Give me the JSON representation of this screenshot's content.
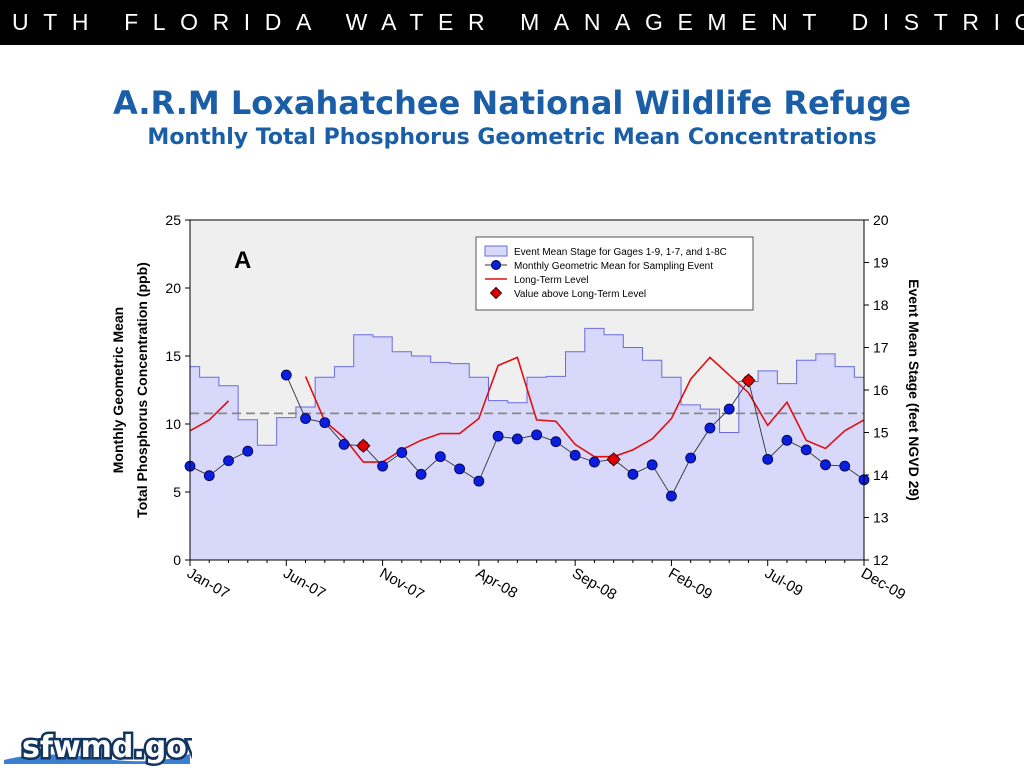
{
  "header": {
    "banner": "SOUTH FLORIDA WATER MANAGEMENT DISTRICT"
  },
  "title": "A.R.M Loxahatchee National Wildlife Refuge",
  "subtitle": "Monthly Total Phosphorus Geometric Mean Concentrations",
  "logo": {
    "text": "sfwmd.gov"
  },
  "colors": {
    "title": "#1a5ea8",
    "stage_fill": "#d8d8fb",
    "stage_line": "#6a6ae6",
    "mean_point": "#0a1ee0",
    "long_term": "#e01010",
    "above": "#e00000"
  },
  "chart_data": {
    "type": "line",
    "panel_label": "A",
    "ylabel_left_line1": "Monthly Geometric Mean",
    "ylabel_left_line2": "Total Phosphorus Concentration (ppb)",
    "ylabel_right": "Event Mean Stage (feet NGVD 29)",
    "ylim_left": [
      0,
      25
    ],
    "ylim_right": [
      12,
      20
    ],
    "left_ticks": [
      "0",
      "5",
      "10",
      "15",
      "20",
      "25"
    ],
    "right_ticks": [
      "12",
      "13",
      "14",
      "15",
      "16",
      "17",
      "18",
      "19",
      "20"
    ],
    "x_tick_labels": [
      "Jan-07",
      "Jun-07",
      "Nov-07",
      "Apr-08",
      "Sep-08",
      "Feb-09",
      "Jul-09",
      "Dec-09"
    ],
    "x_tick_months": [
      0,
      5,
      10,
      15,
      20,
      25,
      30,
      35
    ],
    "legend_position": "top-right",
    "legend": [
      "Event Mean Stage for Gages  1-9, 1-7, and 1-8C",
      "Monthly Geometric Mean for Sampling Event",
      "Long-Term Level",
      "Value above Long-Term Level"
    ],
    "reference_line_right": 15.45,
    "series": [
      {
        "kind": "stage_step",
        "values": [
          16.55,
          16.3,
          16.1,
          15.3,
          14.7,
          15.35,
          15.6,
          16.3,
          16.55,
          17.3,
          17.25,
          16.9,
          16.8,
          16.65,
          16.62,
          16.3,
          15.75,
          15.7,
          16.3,
          16.32,
          16.9,
          17.45,
          17.3,
          17.0,
          16.7,
          16.3,
          15.65,
          15.55,
          15.0,
          16.2,
          16.45,
          16.15,
          16.7,
          16.85,
          16.55,
          16.3
        ]
      },
      {
        "kind": "geomean_points",
        "segments": [
          [
            [
              0,
              6.9
            ],
            [
              1,
              6.2
            ],
            [
              2,
              7.3
            ],
            [
              3,
              8.0
            ]
          ],
          [
            [
              5,
              13.6
            ],
            [
              6,
              10.4
            ],
            [
              7,
              10.1
            ],
            [
              8,
              8.5
            ],
            [
              9,
              8.4
            ],
            [
              10,
              6.9
            ],
            [
              11,
              7.9
            ],
            [
              12,
              6.3
            ],
            [
              13,
              7.6
            ],
            [
              14,
              6.7
            ],
            [
              15,
              5.8
            ],
            [
              16,
              9.1
            ],
            [
              17,
              8.9
            ],
            [
              18,
              9.2
            ],
            [
              19,
              8.7
            ],
            [
              20,
              7.7
            ],
            [
              21,
              7.2
            ],
            [
              22,
              7.4
            ],
            [
              23,
              6.3
            ],
            [
              24,
              7.0
            ],
            [
              25,
              4.7
            ],
            [
              26,
              7.5
            ],
            [
              27,
              9.7
            ],
            [
              28,
              11.1
            ],
            [
              29,
              13.2
            ],
            [
              30,
              7.4
            ],
            [
              31,
              8.8
            ],
            [
              32,
              8.1
            ],
            [
              33,
              7.0
            ],
            [
              34,
              6.9
            ],
            [
              35,
              5.9
            ]
          ]
        ]
      },
      {
        "kind": "long_term_level",
        "segments": [
          [
            [
              0,
              9.5
            ],
            [
              1,
              10.3
            ],
            [
              2,
              11.7
            ]
          ],
          [
            [
              6,
              13.5
            ],
            [
              7,
              10.2
            ],
            [
              8,
              9.0
            ],
            [
              9,
              7.2
            ],
            [
              10,
              7.2
            ],
            [
              11,
              8.1
            ],
            [
              12,
              8.8
            ],
            [
              13,
              9.3
            ],
            [
              14,
              9.3
            ],
            [
              15,
              10.4
            ],
            [
              16,
              14.3
            ],
            [
              17,
              14.9
            ],
            [
              18,
              10.3
            ],
            [
              19,
              10.2
            ],
            [
              20,
              8.5
            ],
            [
              21,
              7.6
            ],
            [
              22,
              7.6
            ],
            [
              23,
              8.1
            ],
            [
              24,
              8.9
            ],
            [
              25,
              10.4
            ],
            [
              26,
              13.3
            ],
            [
              27,
              14.9
            ],
            [
              28,
              13.6
            ],
            [
              29,
              12.3
            ],
            [
              30,
              9.9
            ],
            [
              31,
              11.6
            ],
            [
              32,
              8.8
            ],
            [
              33,
              8.2
            ],
            [
              34,
              9.5
            ],
            [
              35,
              10.3
            ]
          ]
        ]
      },
      {
        "kind": "above_long_term",
        "points": [
          [
            9,
            8.4
          ],
          [
            22,
            7.4
          ],
          [
            29,
            13.2
          ]
        ]
      }
    ]
  }
}
